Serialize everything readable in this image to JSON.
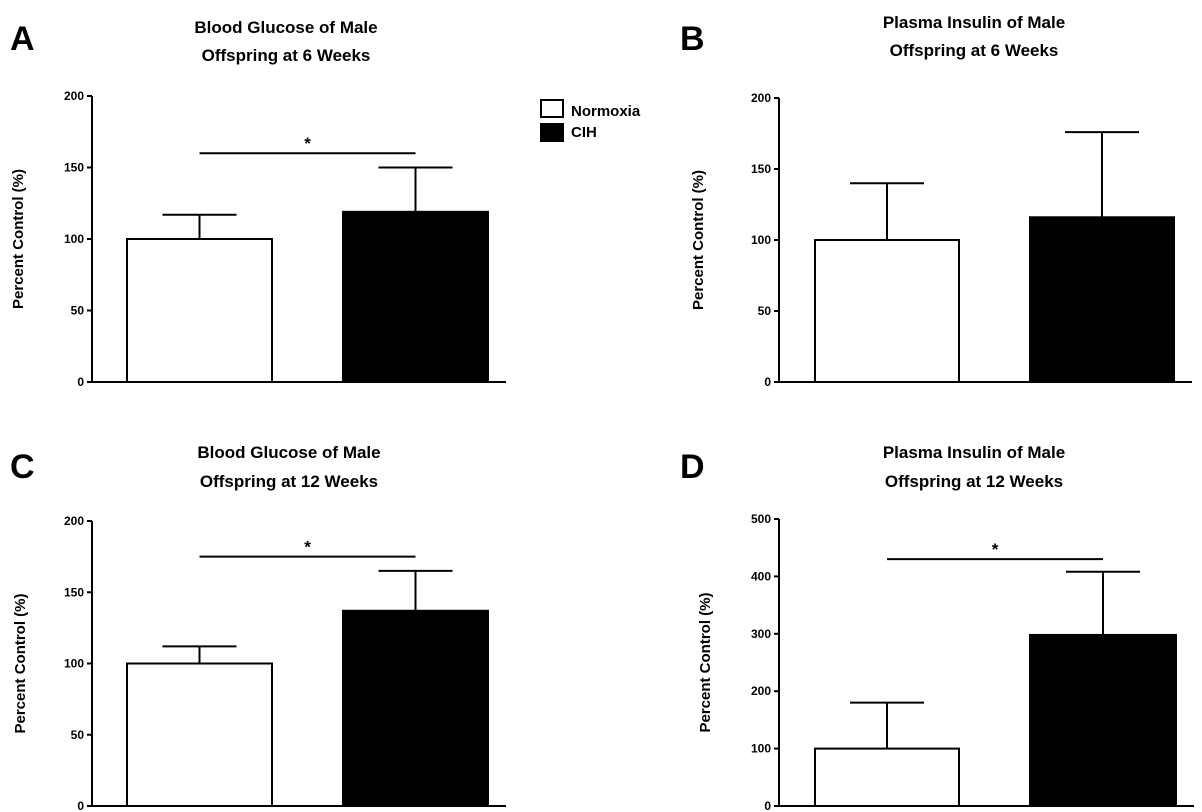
{
  "legend": {
    "entries": [
      {
        "name": "Normoxia",
        "color": "#ffffff"
      },
      {
        "name": "CIH",
        "color": "#000000"
      }
    ]
  },
  "chart_data": [
    {
      "type": "bar",
      "panel": "A",
      "title": [
        "Blood Glucose of Male",
        "Offspring at 6 Weeks"
      ],
      "ylabel": "Percent Control (%)",
      "ylim": [
        0,
        200
      ],
      "yticks": [
        0,
        50,
        100,
        150,
        200
      ],
      "categories": [
        "Normoxia",
        "CIH"
      ],
      "values": [
        100,
        119
      ],
      "errors": [
        17,
        31
      ],
      "colors": [
        "#ffffff",
        "#000000"
      ],
      "significance": {
        "between": [
          0,
          1
        ],
        "label": "*",
        "y": 160
      }
    },
    {
      "type": "bar",
      "panel": "B",
      "title": [
        "Plasma Insulin of Male",
        "Offspring at 6 Weeks"
      ],
      "ylabel": "Percent Control (%)",
      "ylim": [
        0,
        200
      ],
      "yticks": [
        0,
        50,
        100,
        150,
        200
      ],
      "categories": [
        "Normoxia",
        "CIH"
      ],
      "values": [
        100,
        116
      ],
      "errors": [
        40,
        60
      ],
      "colors": [
        "#ffffff",
        "#000000"
      ],
      "significance": null
    },
    {
      "type": "bar",
      "panel": "C",
      "title": [
        "Blood Glucose of Male",
        "Offspring at 12 Weeks"
      ],
      "ylabel": "Percent Control (%)",
      "ylim": [
        0,
        200
      ],
      "yticks": [
        0,
        50,
        100,
        150,
        200
      ],
      "categories": [
        "Normoxia",
        "CIH"
      ],
      "values": [
        100,
        137
      ],
      "errors": [
        12,
        28
      ],
      "colors": [
        "#ffffff",
        "#000000"
      ],
      "significance": {
        "between": [
          0,
          1
        ],
        "label": "*",
        "y": 175
      }
    },
    {
      "type": "bar",
      "panel": "D",
      "title": [
        "Plasma Insulin of Male",
        "Offspring at 12 Weeks"
      ],
      "ylabel": "Percent Control (%)",
      "ylim": [
        0,
        500
      ],
      "yticks": [
        0,
        100,
        200,
        300,
        400,
        500
      ],
      "categories": [
        "Normoxia",
        "CIH"
      ],
      "values": [
        100,
        298
      ],
      "errors": [
        80,
        110
      ],
      "colors": [
        "#ffffff",
        "#000000"
      ],
      "significance": {
        "between": [
          0,
          1
        ],
        "label": "*",
        "y": 430
      }
    }
  ]
}
